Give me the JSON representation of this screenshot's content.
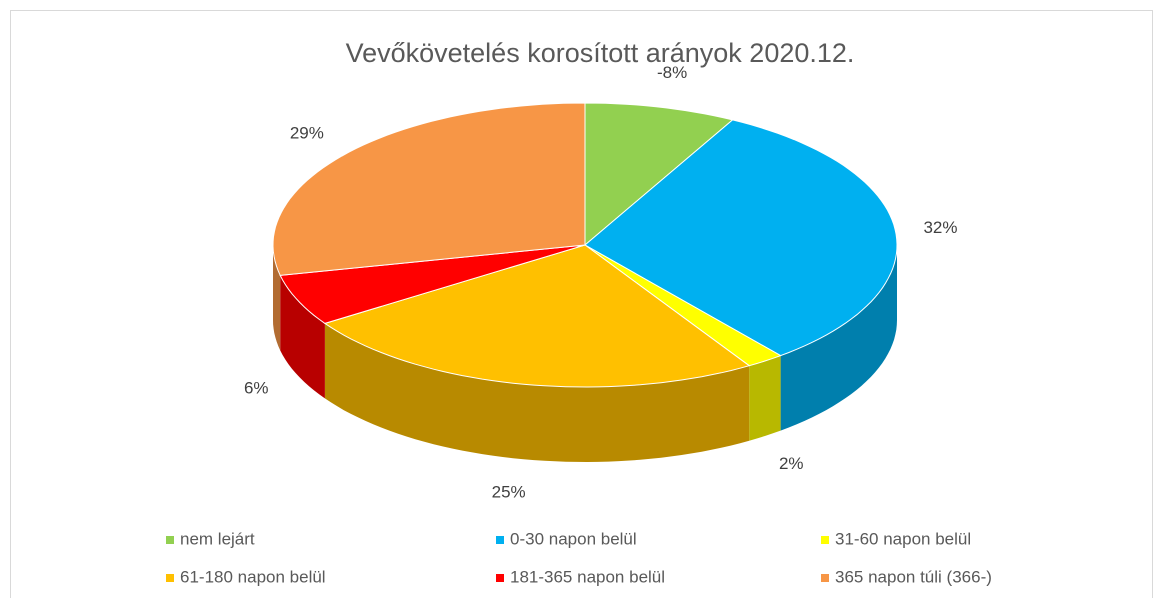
{
  "chart_data": {
    "type": "pie3d",
    "title": "Vevőkövetelés korosított arányok 2020.12.",
    "categories": [
      "nem lejárt",
      "0-30 napon belül",
      "31-60 napon belül",
      "61-180 napon belül",
      "181-365 napon belül",
      "365 napon túli (366-)"
    ],
    "values": [
      -8,
      32,
      2,
      25,
      6,
      29
    ],
    "value_labels": [
      "-8%",
      "32%",
      "2%",
      "25%",
      "6%",
      "29%"
    ],
    "colors": [
      "#92d050",
      "#00b0f0",
      "#ffff00",
      "#ffc000",
      "#ff0000",
      "#f79646"
    ],
    "legend": "bottom"
  }
}
